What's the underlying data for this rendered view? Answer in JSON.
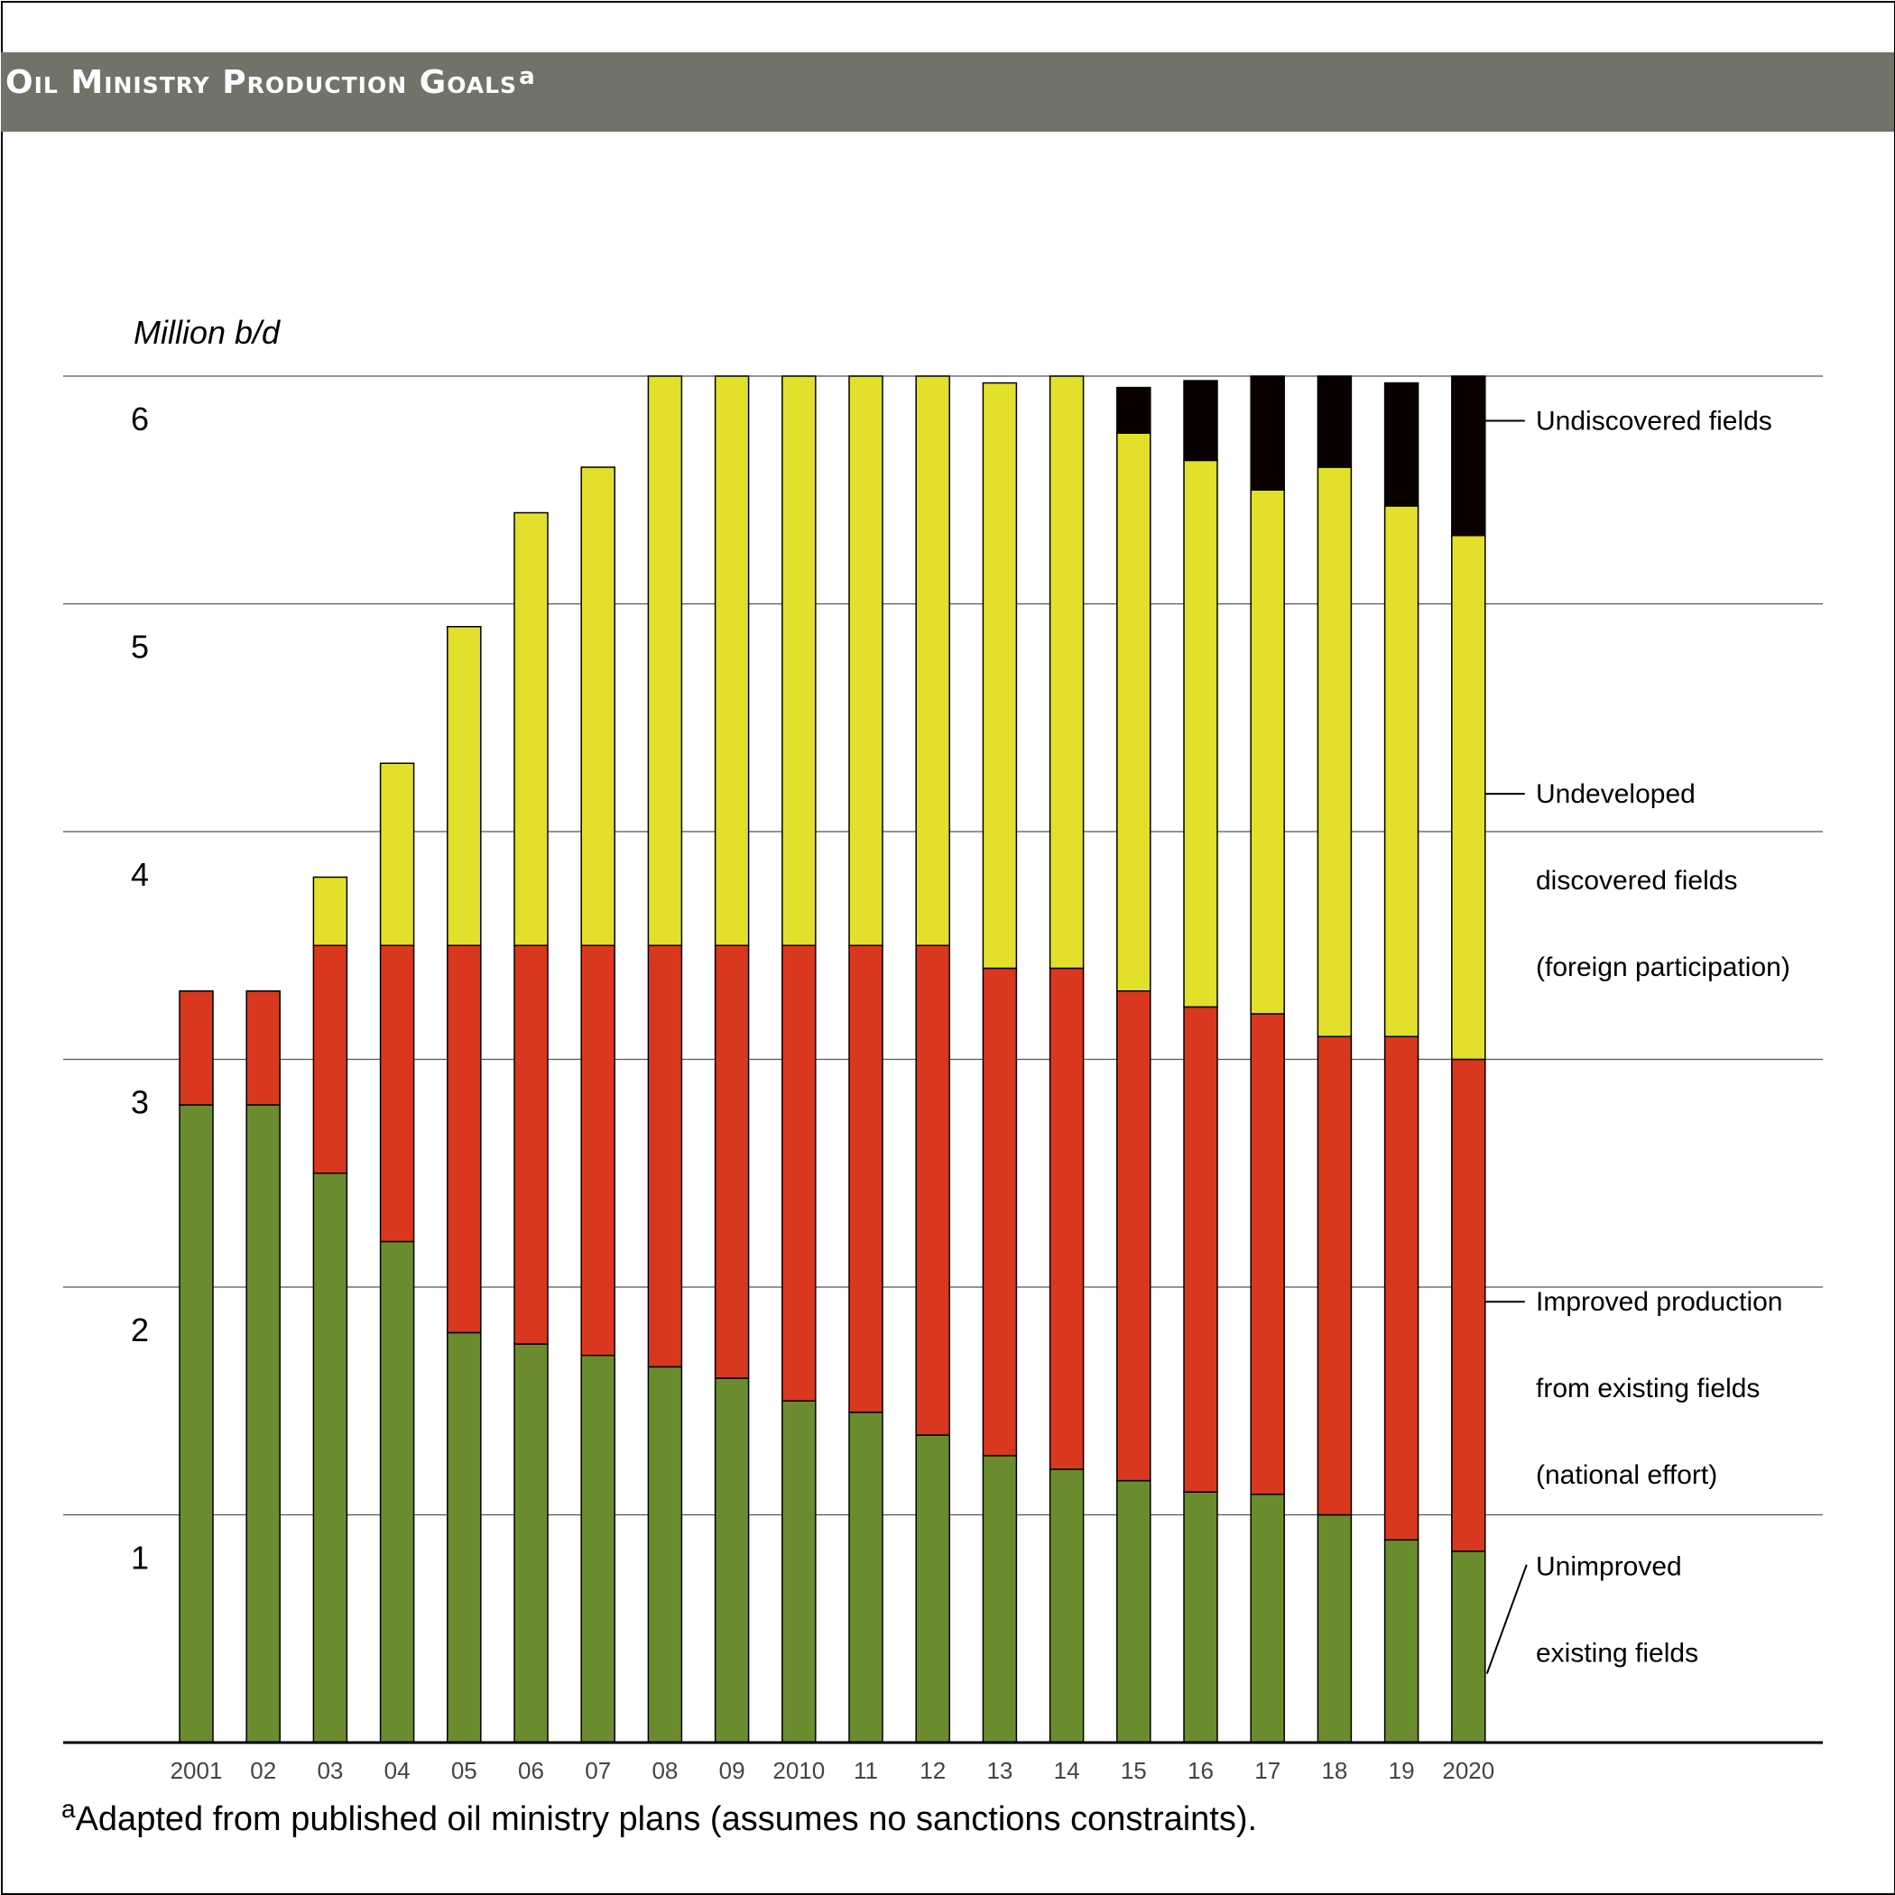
{
  "title": "Oil Ministry Production Goals",
  "title_marker": "a",
  "footnote_marker": "a",
  "footnote_text": "Adapted from published oil ministry plans (assumes no sanctions constraints).",
  "chart_data": {
    "type": "bar",
    "stacked": true,
    "ylabel": "Million b/d",
    "ylim": [
      0,
      6
    ],
    "yticks": [
      1,
      2,
      3,
      4,
      5,
      6
    ],
    "grid": true,
    "categories": [
      "2001",
      "02",
      "03",
      "04",
      "05",
      "06",
      "07",
      "08",
      "09",
      "2010",
      "11",
      "12",
      "13",
      "14",
      "15",
      "16",
      "17",
      "18",
      "19",
      "2020"
    ],
    "series": [
      {
        "name": "Unimproved existing fields",
        "color": "#6b8c2e",
        "values": [
          2.8,
          2.8,
          2.5,
          2.2,
          1.8,
          1.75,
          1.7,
          1.65,
          1.6,
          1.5,
          1.45,
          1.35,
          1.26,
          1.2,
          1.15,
          1.1,
          1.09,
          1.0,
          0.89,
          0.84
        ]
      },
      {
        "name": "Improved production from existing fields (national effort)",
        "color": "#d9371e",
        "values": [
          0.5,
          0.5,
          1.0,
          1.3,
          1.7,
          1.75,
          1.8,
          1.85,
          1.9,
          2.0,
          2.05,
          2.15,
          2.14,
          2.2,
          2.15,
          2.13,
          2.11,
          2.1,
          2.21,
          2.16
        ]
      },
      {
        "name": "Undeveloped discovered fields (foreign participation)",
        "color": "#e2e02a",
        "values": [
          0,
          0,
          0.3,
          0.8,
          1.4,
          1.9,
          2.1,
          2.5,
          2.5,
          2.5,
          2.5,
          2.5,
          2.57,
          2.6,
          2.45,
          2.4,
          2.3,
          2.5,
          2.33,
          2.3
        ]
      },
      {
        "name": "Undiscovered fields",
        "color": "#0a0000",
        "values": [
          0,
          0,
          0,
          0,
          0,
          0,
          0,
          0,
          0,
          0,
          0,
          0,
          0,
          0,
          0.2,
          0.35,
          0.5,
          0.4,
          0.54,
          0.7
        ]
      }
    ],
    "annotations": [
      {
        "series": 3,
        "lines": [
          "Undiscovered fields"
        ]
      },
      {
        "series": 2,
        "lines": [
          "Undeveloped",
          "discovered fields",
          "(foreign participation)"
        ]
      },
      {
        "series": 1,
        "lines": [
          "Improved production",
          "from existing fields",
          "(national effort)"
        ]
      },
      {
        "series": 0,
        "lines": [
          "Unimproved",
          "existing fields"
        ]
      }
    ]
  }
}
